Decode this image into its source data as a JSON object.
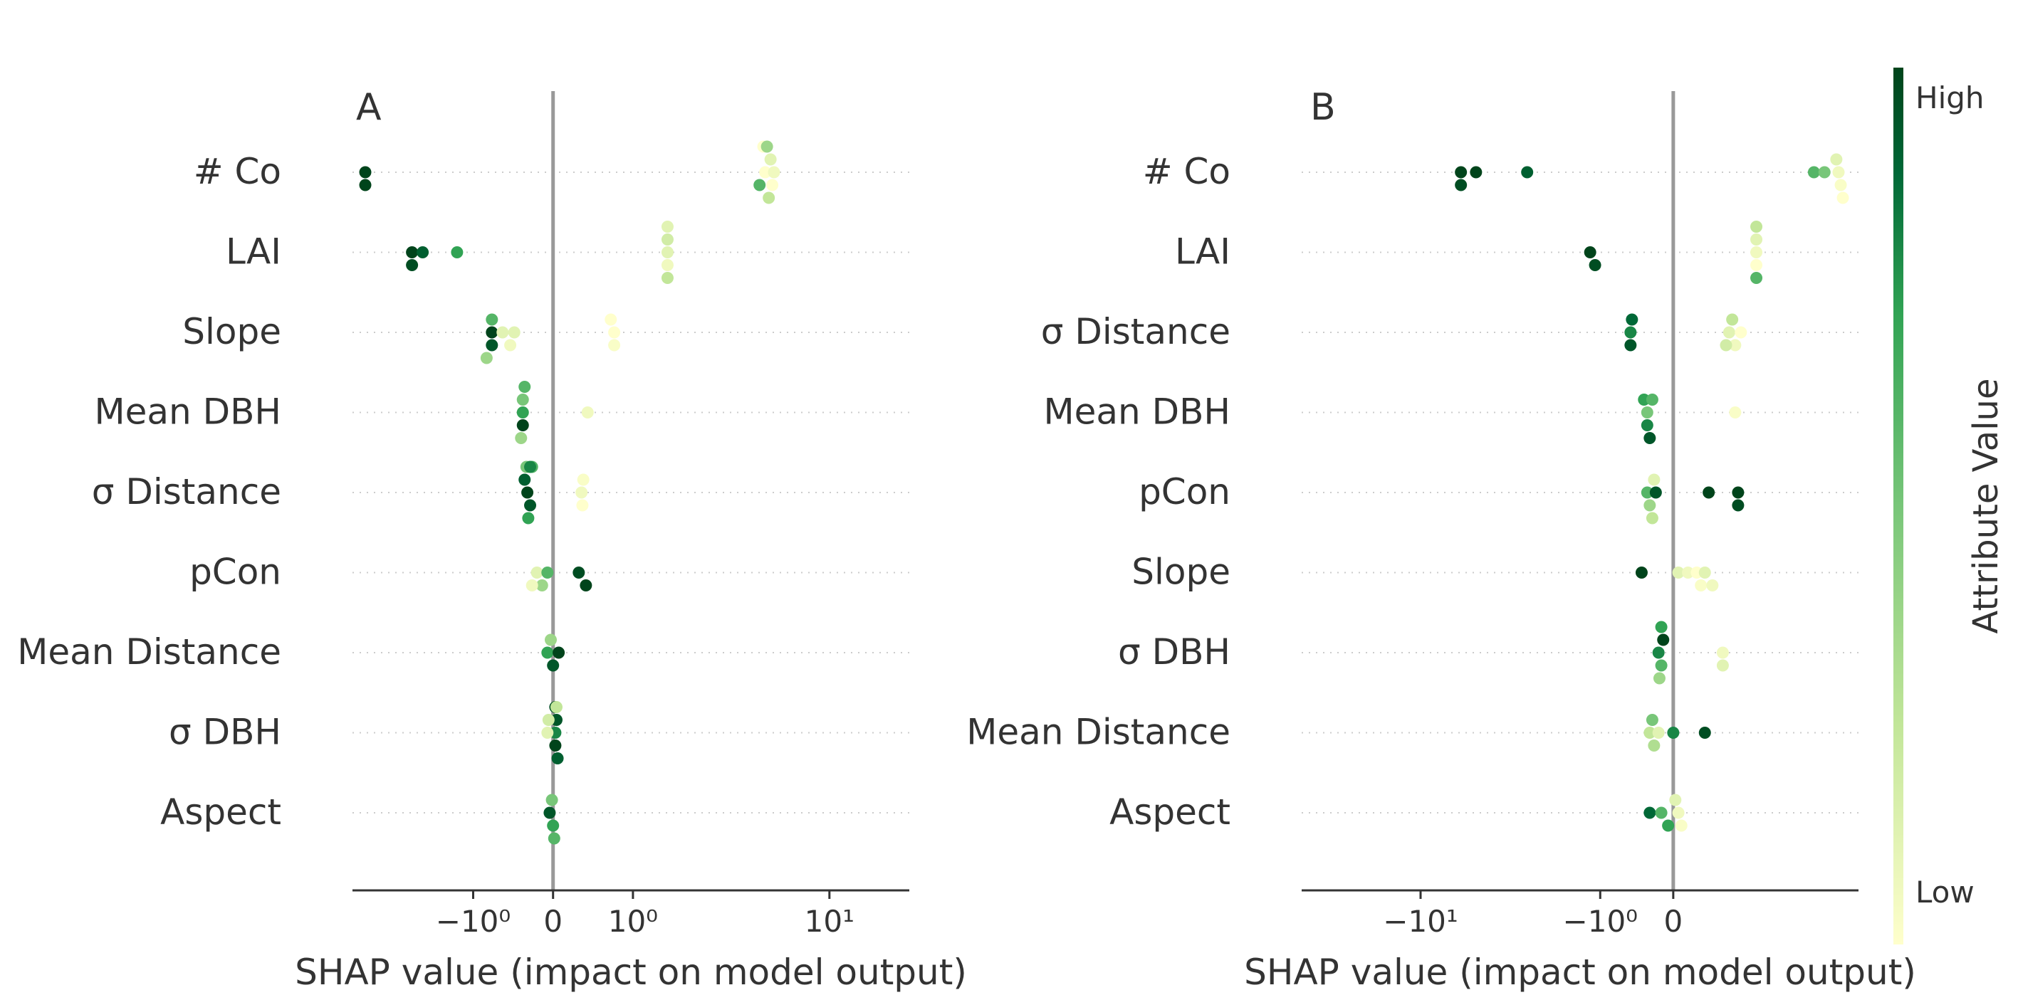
{
  "colors": {
    "zero_line": "#999999",
    "axis": "#333333",
    "guide": "#cccccc",
    "cmap": [
      "#ffffcc",
      "#c2e699",
      "#78c679",
      "#31a354",
      "#006837",
      "#00441b"
    ]
  },
  "colorbar": {
    "label": "Attribute Value",
    "high": "High",
    "low": "Low"
  },
  "chart_data": [
    {
      "type": "scatter",
      "panel_label": "A",
      "xlabel": "SHAP value (impact on model output)",
      "xscale": "symlog",
      "xlim": [
        -4.7,
        21
      ],
      "xticks": [
        {
          "v": -1,
          "label": "−10⁰"
        },
        {
          "v": 0,
          "label": "0"
        },
        {
          "v": 1,
          "label": "10⁰"
        },
        {
          "v": 10,
          "label": "10¹"
        }
      ],
      "features": [
        {
          "name": "# Co",
          "points": [
            [
              -4.1,
              1.0
            ],
            [
              -4.1,
              1.0
            ],
            [
              5.3,
              0.0
            ],
            [
              5.7,
              0.0
            ],
            [
              5.6,
              0.1
            ],
            [
              5.0,
              0.5
            ],
            [
              5.5,
              0.2
            ],
            [
              5.8,
              0.05
            ],
            [
              5.2,
              0.0
            ],
            [
              5.4,
              0.3
            ]
          ]
        },
        {
          "name": "LAI",
          "points": [
            [
              -2.4,
              1.0
            ],
            [
              -2.4,
              0.95
            ],
            [
              -2.1,
              0.85
            ],
            [
              -1.3,
              0.6
            ],
            [
              1.7,
              0.1
            ],
            [
              1.7,
              0.05
            ],
            [
              1.7,
              0.15
            ],
            [
              1.7,
              0.2
            ],
            [
              1.7,
              0.1
            ]
          ]
        },
        {
          "name": "Slope",
          "points": [
            [
              -0.7,
              1.0
            ],
            [
              -0.7,
              0.9
            ],
            [
              -0.7,
              0.5
            ],
            [
              -0.78,
              0.3
            ],
            [
              -0.55,
              0.1
            ],
            [
              -0.45,
              0.05
            ],
            [
              -0.4,
              0.1
            ],
            [
              0.7,
              0.0
            ],
            [
              0.7,
              0.02
            ],
            [
              0.65,
              0.0
            ]
          ]
        },
        {
          "name": "Mean DBH",
          "points": [
            [
              -0.3,
              0.6
            ],
            [
              -0.3,
              1.0
            ],
            [
              -0.3,
              0.4
            ],
            [
              -0.32,
              0.3
            ],
            [
              -0.28,
              0.5
            ],
            [
              0.35,
              0.05
            ]
          ]
        },
        {
          "name": "σ Distance",
          "points": [
            [
              -0.25,
              1.0
            ],
            [
              -0.22,
              0.9
            ],
            [
              -0.28,
              0.85
            ],
            [
              -0.24,
              0.6
            ],
            [
              -0.2,
              0.5
            ],
            [
              -0.26,
              0.4
            ],
            [
              -0.22,
              0.7
            ],
            [
              0.28,
              0.05
            ],
            [
              0.29,
              0.0
            ],
            [
              0.3,
              0.02
            ]
          ]
        },
        {
          "name": "pCon",
          "points": [
            [
              -0.15,
              0.1
            ],
            [
              -0.1,
              0.3
            ],
            [
              -0.05,
              0.5
            ],
            [
              0.25,
              0.95
            ],
            [
              0.33,
              1.0
            ],
            [
              -0.2,
              0.05
            ]
          ]
        },
        {
          "name": "Mean Distance",
          "points": [
            [
              -0.05,
              0.6
            ],
            [
              0.0,
              0.9
            ],
            [
              0.05,
              1.0
            ],
            [
              -0.02,
              0.3
            ]
          ]
        },
        {
          "name": "σ DBH",
          "points": [
            [
              0.02,
              0.7
            ],
            [
              0.02,
              1.0
            ],
            [
              0.03,
              0.9
            ],
            [
              0.04,
              0.85
            ],
            [
              -0.05,
              0.1
            ],
            [
              -0.04,
              0.15
            ],
            [
              0.02,
              0.95
            ],
            [
              0.03,
              0.2
            ]
          ]
        },
        {
          "name": "Aspect",
          "points": [
            [
              -0.03,
              0.9
            ],
            [
              0.0,
              0.6
            ],
            [
              -0.01,
              0.4
            ],
            [
              0.01,
              0.5
            ]
          ]
        }
      ]
    },
    {
      "type": "scatter",
      "panel_label": "B",
      "xlabel": "SHAP value (impact on model output)",
      "xscale": "symlog",
      "xlim": [
        -33,
        4.8
      ],
      "xticks": [
        {
          "v": -10,
          "label": "−10¹"
        },
        {
          "v": -1,
          "label": "−10⁰"
        },
        {
          "v": 0,
          "label": "0"
        }
      ],
      "features": [
        {
          "name": "# Co",
          "points": [
            [
              -6.5,
              1.0
            ],
            [
              -6.5,
              0.95
            ],
            [
              -5.5,
              1.0
            ],
            [
              -3.0,
              0.85
            ],
            [
              2.8,
              0.5
            ],
            [
              3.2,
              0.4
            ],
            [
              3.8,
              0.05
            ],
            [
              3.9,
              0.02
            ],
            [
              3.7,
              0.1
            ],
            [
              4.0,
              0.0
            ]
          ]
        },
        {
          "name": "LAI",
          "points": [
            [
              -1.2,
              1.0
            ],
            [
              -1.1,
              0.95
            ],
            [
              1.2,
              0.05
            ],
            [
              1.2,
              0.0
            ],
            [
              1.2,
              0.1
            ],
            [
              1.2,
              0.5
            ],
            [
              1.2,
              0.2
            ]
          ]
        },
        {
          "name": "σ Distance",
          "points": [
            [
              -0.5,
              0.7
            ],
            [
              -0.5,
              0.9
            ],
            [
              -0.48,
              0.8
            ],
            [
              0.7,
              0.1
            ],
            [
              0.8,
              0.05
            ],
            [
              0.75,
              0.2
            ],
            [
              0.9,
              0.0
            ],
            [
              0.65,
              0.15
            ]
          ]
        },
        {
          "name": "Mean DBH",
          "points": [
            [
              -0.28,
              0.4
            ],
            [
              -0.28,
              0.7
            ],
            [
              -0.32,
              0.6
            ],
            [
              -0.25,
              0.9
            ],
            [
              -0.22,
              0.5
            ],
            [
              0.8,
              0.02
            ]
          ]
        },
        {
          "name": "pCon",
          "points": [
            [
              -0.28,
              0.5
            ],
            [
              -0.25,
              0.3
            ],
            [
              -0.2,
              0.1
            ],
            [
              -0.18,
              0.9
            ],
            [
              0.4,
              1.0
            ],
            [
              0.85,
              1.0
            ],
            [
              0.85,
              0.95
            ],
            [
              -0.22,
              0.2
            ]
          ]
        },
        {
          "name": "Slope",
          "points": [
            [
              -0.35,
              1.0
            ],
            [
              0.05,
              0.1
            ],
            [
              0.15,
              0.05
            ],
            [
              0.25,
              0.0
            ],
            [
              0.35,
              0.1
            ],
            [
              0.3,
              0.02
            ],
            [
              0.45,
              0.05
            ]
          ]
        },
        {
          "name": "σ DBH",
          "points": [
            [
              -0.15,
              0.7
            ],
            [
              -0.12,
              0.5
            ],
            [
              -0.1,
              1.0
            ],
            [
              -0.14,
              0.3
            ],
            [
              -0.12,
              0.6
            ],
            [
              0.6,
              0.05
            ],
            [
              0.6,
              0.1
            ]
          ]
        },
        {
          "name": "Mean Distance",
          "points": [
            [
              -0.25,
              0.2
            ],
            [
              -0.2,
              0.25
            ],
            [
              -0.15,
              0.1
            ],
            [
              0.0,
              0.7
            ],
            [
              0.35,
              0.95
            ],
            [
              -0.22,
              0.4
            ]
          ]
        },
        {
          "name": "Aspect",
          "points": [
            [
              -0.25,
              0.8
            ],
            [
              -0.12,
              0.5
            ],
            [
              -0.05,
              0.6
            ],
            [
              0.05,
              0.05
            ],
            [
              0.08,
              0.02
            ],
            [
              0.02,
              0.1
            ]
          ]
        }
      ]
    }
  ]
}
